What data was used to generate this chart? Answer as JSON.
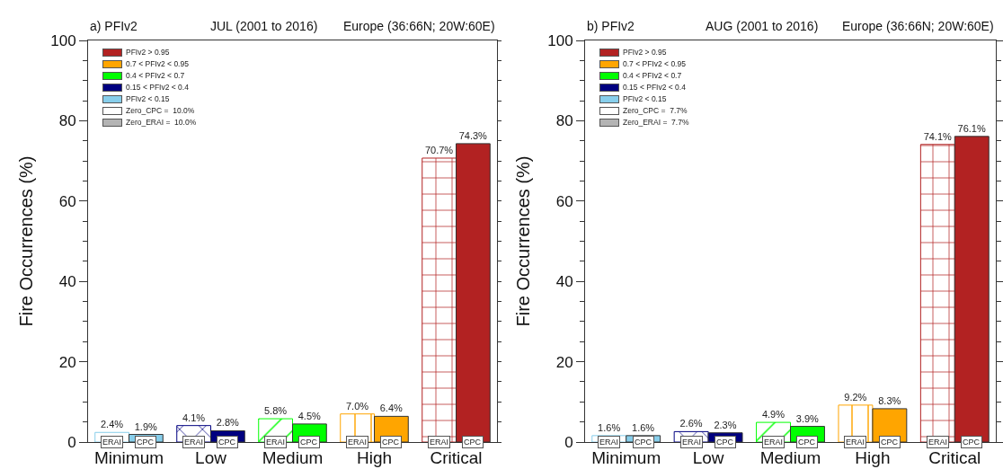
{
  "chart_data": [
    {
      "type": "bar",
      "title": "a) PFIv2",
      "subtitle": "JUL (2001 to 2016)",
      "ylabel": "Fire Occurrences (%)",
      "annotations": [
        "Europe (36:66N; 20W:60E)",
        "PFIv2 > 0.95",
        "0.7 < PFIv2 < 0.95",
        "0.4 < PFIv2 < 0.7",
        "0.15 < PFIv2 < 0.4",
        "PFIv2 < 0.15",
        "Zero_CPC =  10.0%",
        "Zero_ERAI =  10.0%"
      ],
      "categories": [
        "Minimum",
        "Low",
        "Medium",
        "High",
        "Critical"
      ],
      "series": [
        {
          "name": "ERAI",
          "colors": [
            "#87ceeb",
            "#000080",
            "#00ff00",
            "#ffa500",
            "#b22222"
          ],
          "values": [
            2.4,
            4.1,
            5.8,
            7.0,
            70.7
          ],
          "value_labels": [
            "2.4%",
            "4.1%",
            "5.8%",
            "7.0%",
            "70.7%"
          ]
        },
        {
          "name": "CPC",
          "colors": [
            "#87ceeb",
            "#000080",
            "#00ff00",
            "#ffa500",
            "#b22222"
          ],
          "values": [
            1.9,
            2.8,
            4.5,
            6.4,
            74.3
          ],
          "value_labels": [
            "1.9%",
            "2.8%",
            "4.5%",
            "6.4%",
            "74.3%"
          ]
        }
      ],
      "ylim": [
        0,
        100
      ],
      "yticks": [
        0,
        20,
        40,
        60,
        80,
        100
      ],
      "grid": false
    },
    {
      "type": "bar",
      "title": "b) PFIv2",
      "subtitle": "AUG (2001 to 2016)",
      "ylabel": "Fire Occurrences (%)",
      "annotations": [
        "Europe (36:66N; 20W:60E)",
        "PFIv2 > 0.95",
        "0.7 < PFIv2 < 0.95",
        "0.4 < PFIv2 < 0.7",
        "0.15 < PFIv2 < 0.4",
        "PFIv2 < 0.15",
        "Zero_CPC =  7.7%",
        "Zero_ERAI =  7.7%"
      ],
      "categories": [
        "Minimum",
        "Low",
        "Medium",
        "High",
        "Critical"
      ],
      "series": [
        {
          "name": "ERAI",
          "colors": [
            "#87ceeb",
            "#000080",
            "#00ff00",
            "#ffa500",
            "#b22222"
          ],
          "values": [
            1.6,
            2.6,
            4.9,
            9.2,
            74.1
          ],
          "value_labels": [
            "1.6%",
            "2.6%",
            "4.9%",
            "9.2%",
            "74.1%"
          ]
        },
        {
          "name": "CPC",
          "colors": [
            "#87ceeb",
            "#000080",
            "#00ff00",
            "#ffa500",
            "#b22222"
          ],
          "values": [
            1.6,
            2.3,
            3.9,
            8.3,
            76.1
          ],
          "value_labels": [
            "1.6%",
            "2.3%",
            "3.9%",
            "8.3%",
            "76.1%"
          ]
        }
      ],
      "ylim": [
        0,
        100
      ],
      "yticks": [
        0,
        20,
        40,
        60,
        80,
        100
      ],
      "grid": false
    }
  ]
}
